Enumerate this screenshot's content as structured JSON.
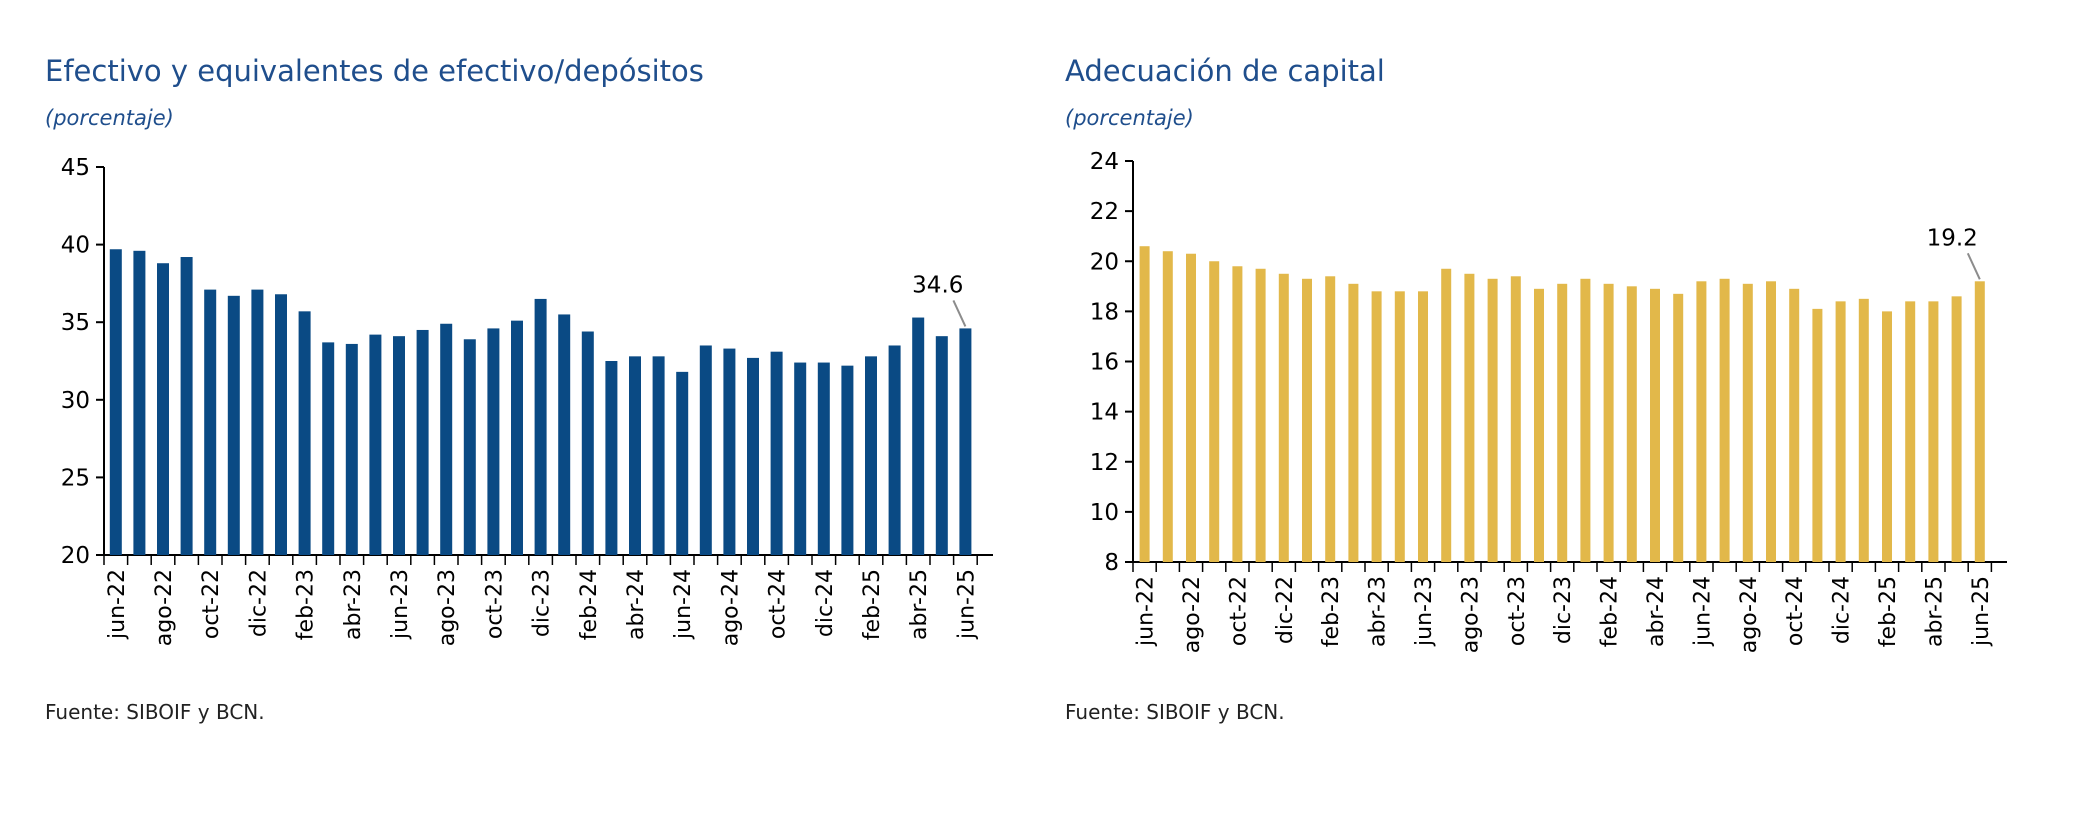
{
  "chart_data": [
    {
      "type": "bar",
      "title": "Efectivo y equivalentes de efectivo/depósitos",
      "subtitle": "(porcentaje)",
      "source": "Fuente: SIBOIF y BCN.",
      "color": "#0a4a84",
      "ylim": [
        20,
        45
      ],
      "yticks": [
        20,
        25,
        30,
        35,
        40,
        45
      ],
      "x_tick_labels": [
        "jun-22",
        "ago-22",
        "oct-22",
        "dic-22",
        "feb-23",
        "abr-23",
        "jun-23",
        "ago-23",
        "oct-23",
        "dic-23",
        "feb-24",
        "abr-24",
        "jun-24",
        "ago-24",
        "oct-24",
        "dic-24",
        "feb-25",
        "abr-25",
        "jun-25"
      ],
      "categories": [
        "jun-22",
        "jul-22",
        "ago-22",
        "sep-22",
        "oct-22",
        "nov-22",
        "dic-22",
        "ene-23",
        "feb-23",
        "mar-23",
        "abr-23",
        "may-23",
        "jun-23",
        "jul-23",
        "ago-23",
        "sep-23",
        "oct-23",
        "nov-23",
        "dic-23",
        "ene-24",
        "feb-24",
        "mar-24",
        "abr-24",
        "may-24",
        "jun-24",
        "jul-24",
        "ago-24",
        "sep-24",
        "oct-24",
        "nov-24",
        "dic-24",
        "ene-25",
        "feb-25",
        "mar-25",
        "abr-25",
        "may-25",
        "jun-25"
      ],
      "values": [
        39.7,
        39.6,
        38.8,
        39.2,
        37.1,
        36.7,
        37.1,
        36.8,
        35.7,
        33.7,
        33.6,
        34.2,
        34.1,
        34.5,
        34.9,
        33.9,
        34.6,
        35.1,
        36.5,
        35.5,
        34.4,
        32.5,
        32.8,
        32.8,
        31.8,
        33.5,
        33.3,
        32.7,
        33.1,
        32.4,
        32.4,
        32.2,
        32.8,
        33.5,
        35.3,
        34.1,
        34.6
      ],
      "annotation": {
        "label": "34.6",
        "index": 36
      }
    },
    {
      "type": "bar",
      "title": "Adecuación de capital",
      "subtitle": "(porcentaje)",
      "source": "Fuente: SIBOIF y BCN.",
      "color": "#e2b84a",
      "ylim": [
        8,
        24
      ],
      "yticks": [
        8,
        10,
        12,
        14,
        16,
        18,
        20,
        22,
        24
      ],
      "x_tick_labels": [
        "jun-22",
        "ago-22",
        "oct-22",
        "dic-22",
        "feb-23",
        "abr-23",
        "jun-23",
        "ago-23",
        "oct-23",
        "dic-23",
        "feb-24",
        "abr-24",
        "jun-24",
        "ago-24",
        "oct-24",
        "dic-24",
        "feb-25",
        "abr-25",
        "jun-25"
      ],
      "categories": [
        "jun-22",
        "jul-22",
        "ago-22",
        "sep-22",
        "oct-22",
        "nov-22",
        "dic-22",
        "ene-23",
        "feb-23",
        "mar-23",
        "abr-23",
        "may-23",
        "jun-23",
        "jul-23",
        "ago-23",
        "sep-23",
        "oct-23",
        "nov-23",
        "dic-23",
        "ene-24",
        "feb-24",
        "mar-24",
        "abr-24",
        "may-24",
        "jun-24",
        "jul-24",
        "ago-24",
        "sep-24",
        "oct-24",
        "nov-24",
        "dic-24",
        "ene-25",
        "feb-25",
        "mar-25",
        "abr-25",
        "may-25",
        "jun-25"
      ],
      "values": [
        20.6,
        20.4,
        20.3,
        20.0,
        19.8,
        19.7,
        19.5,
        19.3,
        19.4,
        19.1,
        18.8,
        18.8,
        18.8,
        19.7,
        19.5,
        19.3,
        19.4,
        18.9,
        19.1,
        19.3,
        19.1,
        19.0,
        18.9,
        18.7,
        19.2,
        19.3,
        19.1,
        19.2,
        18.9,
        18.1,
        18.4,
        18.5,
        18.0,
        18.4,
        18.4,
        18.6,
        19.2
      ],
      "annotation": {
        "label": "19.2",
        "index": 36
      }
    }
  ]
}
